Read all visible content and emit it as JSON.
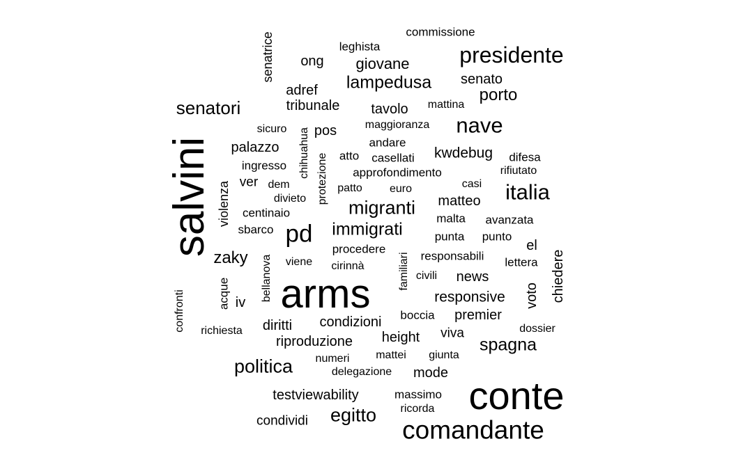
{
  "words": [
    "salvini",
    "arms",
    "conte",
    "comandante",
    "presidente",
    "nave",
    "italia",
    "migranti",
    "pd",
    "immigrati",
    "senatori",
    "lampedusa",
    "politica",
    "egitto",
    "spagna",
    "porto",
    "zaky",
    "giovane",
    "ong",
    "senato",
    "tribunale",
    "adref",
    "tavolo",
    "pos",
    "kwdebug",
    "palazzo",
    "matteo",
    "condizioni",
    "diritti",
    "riproduzione",
    "responsive",
    "premier",
    "news",
    "height",
    "testviewability",
    "condividi",
    "mode",
    "viva",
    "voto",
    "chiedere",
    "el",
    "commissione",
    "leghista",
    "senatrice",
    "mattina",
    "maggioranza",
    "sicuro",
    "chihuahua",
    "andare",
    "atto",
    "casellati",
    "difesa",
    "ingresso",
    "approfondimento",
    "rifiutato",
    "protezione",
    "ver",
    "dem",
    "patto",
    "euro",
    "casi",
    "divieto",
    "violenza",
    "centinaio",
    "malta",
    "avanzata",
    "sbarco",
    "punta",
    "punto",
    "procedere",
    "responsabili",
    "bellanova",
    "viene",
    "cirinnà",
    "familiari",
    "lettera",
    "civili",
    "acque",
    "iv",
    "confronti",
    "boccia",
    "dossier",
    "richiesta",
    "numeri",
    "mattei",
    "giunta",
    "delegazione",
    "massimo",
    "ricorda"
  ]
}
